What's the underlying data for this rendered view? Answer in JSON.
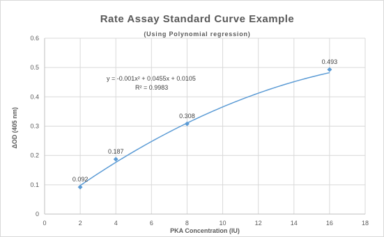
{
  "chart_data": {
    "type": "scatter",
    "title": "Rate Assay Standard Curve Example",
    "subtitle": "(Using Polynomial regression)",
    "xlabel": "PKA Concentration (IU)",
    "ylabel": "ΔOD (405 nm)",
    "xlim": [
      0,
      18
    ],
    "ylim": [
      0,
      0.6
    ],
    "x_ticks": [
      "0",
      "2",
      "4",
      "6",
      "8",
      "10",
      "12",
      "14",
      "16",
      "18"
    ],
    "y_ticks": [
      "0",
      "0.1",
      "0.2",
      "0.3",
      "0.4",
      "0.5",
      "0.6"
    ],
    "grid": true,
    "points": [
      {
        "x": 2,
        "y": 0.092,
        "label": "0.092"
      },
      {
        "x": 4,
        "y": 0.187,
        "label": "0.187"
      },
      {
        "x": 8,
        "y": 0.308,
        "label": "0.308"
      },
      {
        "x": 16,
        "y": 0.493,
        "label": "0.493"
      }
    ],
    "trendline": {
      "type": "polynomial",
      "coefficients": [
        -0.001,
        0.0455,
        0.0105
      ],
      "x_range": [
        2,
        16
      ],
      "equation": "y = -0.001x² + 0.0455x + 0.0105",
      "r_squared": "R² = 0.9983"
    },
    "colors": {
      "series": "#5b9bd5",
      "grid": "#d9d9d9",
      "axis": "#bfbfbf"
    }
  }
}
